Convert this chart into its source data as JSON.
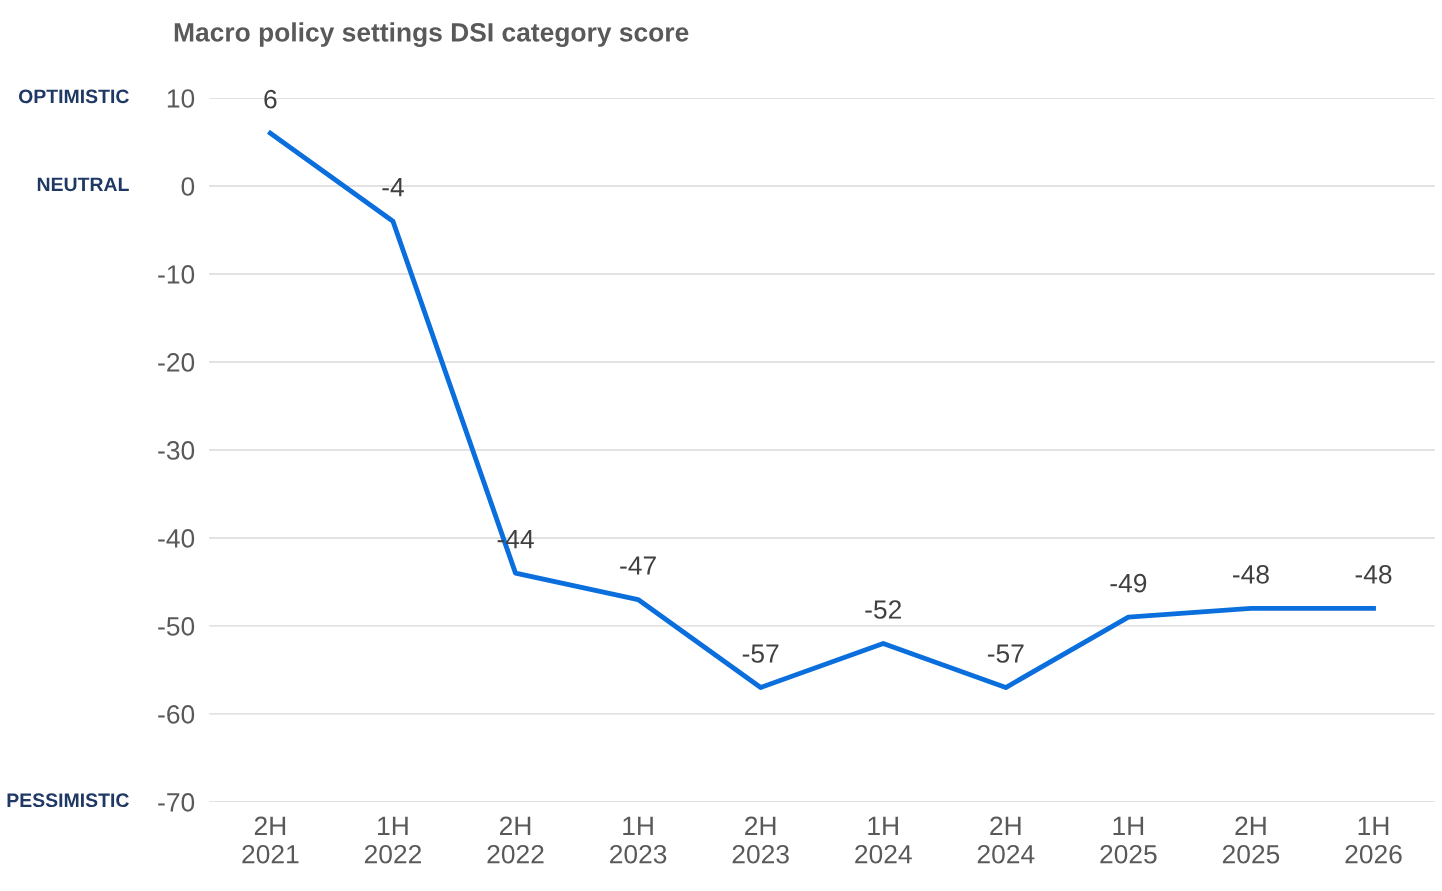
{
  "chart_data": {
    "type": "line",
    "title": "Macro policy settings DSI category score",
    "categories": [
      "2H\n2021",
      "1H\n2022",
      "2H\n2022",
      "1H\n2023",
      "2H\n2023",
      "1H\n2024",
      "2H\n2024",
      "1H\n2025",
      "2H\n2025",
      "1H\n2026"
    ],
    "series": [
      {
        "color": "#0a6fdc",
        "values": [
          6,
          -4,
          -44,
          -47,
          -57,
          -52,
          -57,
          -49,
          -48,
          -48
        ]
      }
    ],
    "ylim": [
      -70,
      10
    ],
    "yticks": [
      -70,
      -60,
      -50,
      -40,
      -30,
      -20,
      -10,
      0,
      10
    ],
    "grid": "y",
    "data_labels": true,
    "marker": "none",
    "line_style": "solid",
    "annotations": [
      "OPTIMISTIC",
      "NEUTRAL",
      "PESSIMISTIC"
    ]
  }
}
